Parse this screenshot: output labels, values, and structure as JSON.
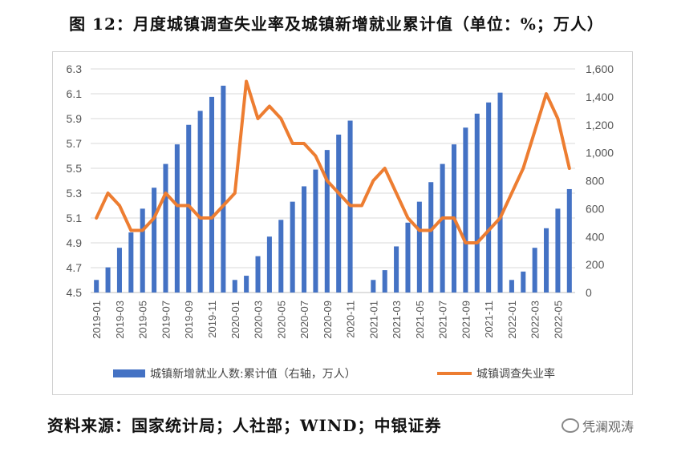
{
  "title": "图 12：月度城镇调查失业率及城镇新增就业累计值（单位：%；万人）",
  "source": "资料来源：国家统计局；人社部；WIND；中银证券",
  "watermark": "凭澜观涛",
  "colors": {
    "bar": "#4472C4",
    "line": "#ED7D31"
  },
  "chart_data": {
    "type": "bar+line",
    "categories": [
      "2019-01",
      "2019-02",
      "2019-03",
      "2019-04",
      "2019-05",
      "2019-06",
      "2019-07",
      "2019-08",
      "2019-09",
      "2019-10",
      "2019-11",
      "2019-12",
      "2020-01",
      "2020-02",
      "2020-03",
      "2020-04",
      "2020-05",
      "2020-06",
      "2020-07",
      "2020-08",
      "2020-09",
      "2020-10",
      "2020-11",
      "2020-12",
      "2021-01",
      "2021-02",
      "2021-03",
      "2021-04",
      "2021-05",
      "2021-06",
      "2021-07",
      "2021-08",
      "2021-09",
      "2021-10",
      "2021-11",
      "2021-12",
      "2022-01",
      "2022-02",
      "2022-03",
      "2022-04",
      "2022-05",
      "2022-06"
    ],
    "x_tick_labels": [
      "2019-01",
      "2019-03",
      "2019-05",
      "2019-07",
      "2019-09",
      "2019-11",
      "2020-01",
      "2020-03",
      "2020-05",
      "2020-07",
      "2020-09",
      "2020-11",
      "2021-01",
      "2021-03",
      "2021-05",
      "2021-07",
      "2021-09",
      "2021-11",
      "2022-01",
      "2022-03",
      "2022-05"
    ],
    "y_left": {
      "ticks": [
        "4.5",
        "4.7",
        "4.9",
        "5.1",
        "5.3",
        "5.5",
        "5.7",
        "5.9",
        "6.1",
        "6.3"
      ],
      "range": [
        4.5,
        6.3
      ]
    },
    "y_right": {
      "ticks": [
        "0",
        "200",
        "400",
        "600",
        "800",
        "1,000",
        "1,200",
        "1,400",
        "1,600"
      ],
      "range": [
        0,
        1600
      ]
    },
    "grid": true,
    "legend_position": "bottom",
    "series": [
      {
        "name": "城镇新增就业人数:累计值（右轴，万人）",
        "type": "bar",
        "axis": "right",
        "values": [
          90,
          180,
          320,
          430,
          600,
          750,
          920,
          1060,
          1200,
          1300,
          1400,
          1480,
          90,
          120,
          260,
          400,
          520,
          650,
          760,
          880,
          1020,
          1130,
          1230,
          0,
          90,
          160,
          330,
          500,
          650,
          790,
          920,
          1060,
          1180,
          1280,
          1360,
          1430,
          90,
          150,
          320,
          460,
          600,
          740
        ]
      },
      {
        "name": "城镇调查失业率",
        "type": "line",
        "axis": "left",
        "values": [
          5.1,
          5.3,
          5.2,
          5.0,
          5.0,
          5.1,
          5.3,
          5.2,
          5.2,
          5.1,
          5.1,
          5.2,
          5.3,
          6.2,
          5.9,
          6.0,
          5.9,
          5.7,
          5.7,
          5.6,
          5.4,
          5.3,
          5.2,
          5.2,
          5.4,
          5.5,
          5.3,
          5.1,
          5.0,
          5.0,
          5.1,
          5.1,
          4.9,
          4.9,
          5.0,
          5.1,
          5.3,
          5.5,
          5.8,
          6.1,
          5.9,
          5.5
        ]
      }
    ]
  }
}
